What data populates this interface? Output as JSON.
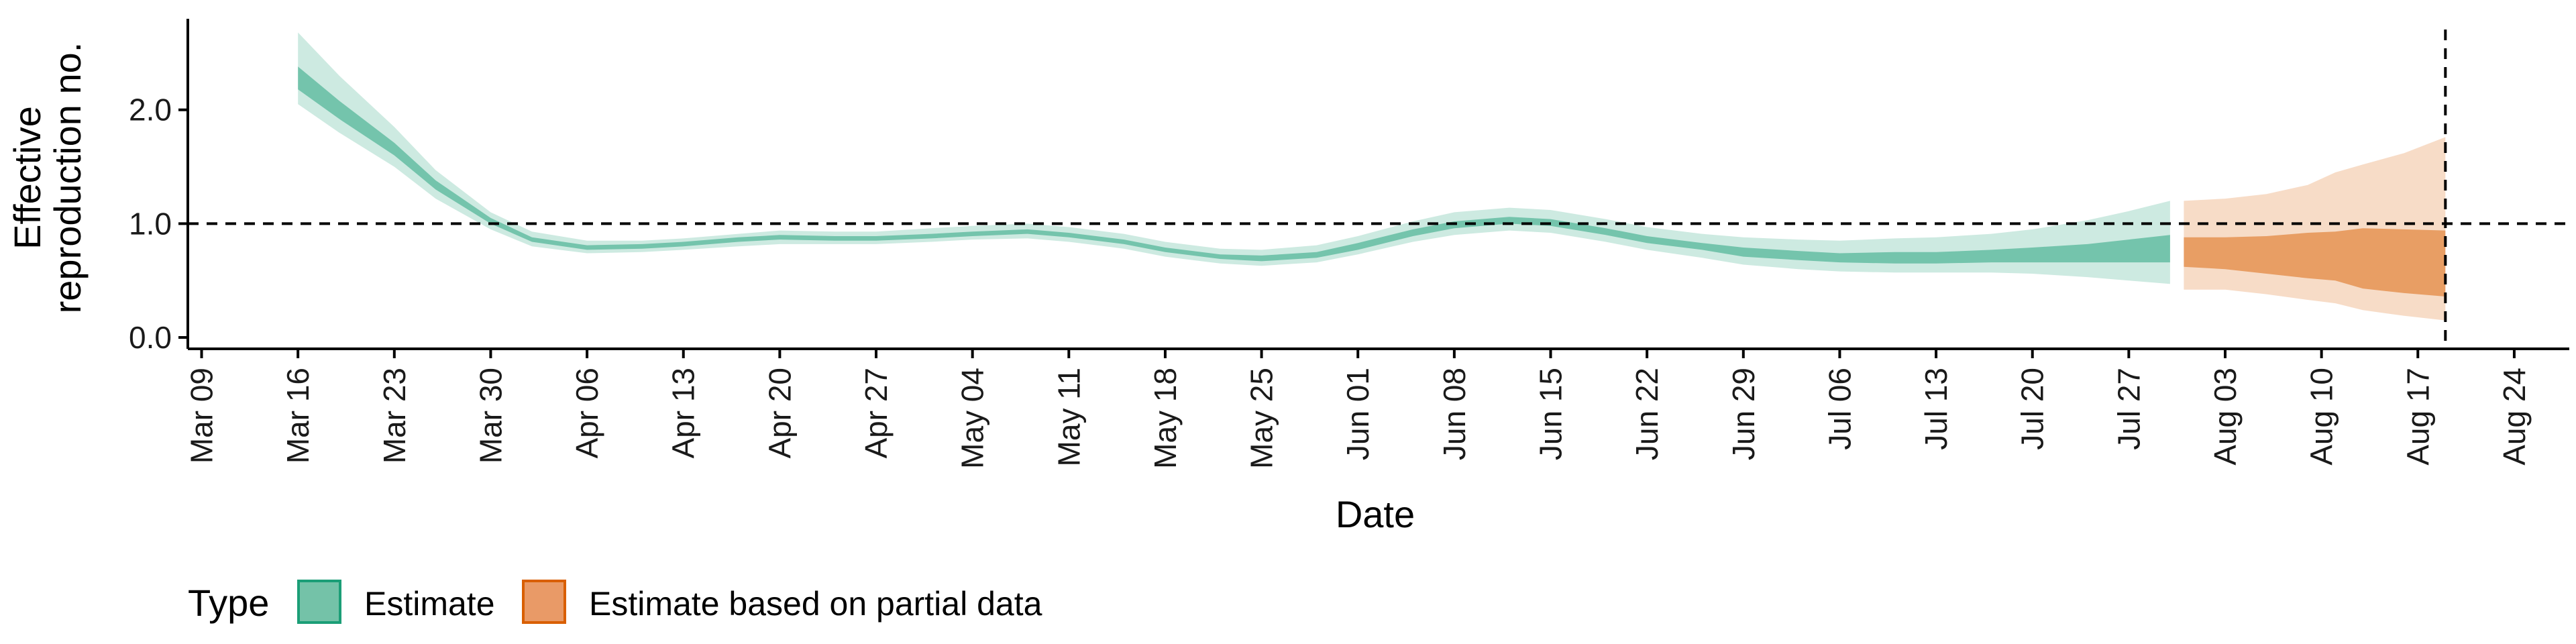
{
  "chart_data": {
    "type": "area",
    "title": "",
    "xlabel": "Date",
    "ylabel": "Effective reproduction no.",
    "ylabel_lines": [
      "Effective",
      "reproduction no."
    ],
    "x_ticks": [
      "Mar 09",
      "Mar 16",
      "Mar 23",
      "Mar 30",
      "Apr 06",
      "Apr 13",
      "Apr 20",
      "Apr 27",
      "May 04",
      "May 11",
      "May 18",
      "May 25",
      "Jun 01",
      "Jun 08",
      "Jun 15",
      "Jun 22",
      "Jun 29",
      "Jul 06",
      "Jul 13",
      "Jul 20",
      "Jul 27",
      "Aug 03",
      "Aug 10",
      "Aug 17",
      "Aug 24"
    ],
    "y_ticks": [
      "0.0",
      "1.0",
      "2.0"
    ],
    "xlim": [
      "2020-03-08",
      "2020-08-28"
    ],
    "ylim": [
      -0.1,
      2.8
    ],
    "reference_line_y": 1.0,
    "reference_line_x": "2020-08-19",
    "legend": {
      "title": "Type",
      "position": "bottom",
      "items": [
        {
          "label": "Estimate",
          "fill": "#74c2a8",
          "stroke": "#1b9e77"
        },
        {
          "label": "Estimate based on partial data",
          "fill": "#e99a67",
          "stroke": "#d95f02"
        }
      ]
    },
    "series": [
      {
        "name": "Estimate",
        "color": "#1b9e77",
        "points": [
          {
            "x": "2020-03-16",
            "lo90": 2.05,
            "lo50": 2.18,
            "median": 2.28,
            "hi50": 2.38,
            "hi90": 2.68
          },
          {
            "x": "2020-03-19",
            "lo90": 1.8,
            "lo50": 1.92,
            "median": 2.0,
            "hi50": 2.08,
            "hi90": 2.3
          },
          {
            "x": "2020-03-23",
            "lo90": 1.5,
            "lo50": 1.6,
            "median": 1.65,
            "hi50": 1.71,
            "hi90": 1.85
          },
          {
            "x": "2020-03-26",
            "lo90": 1.22,
            "lo50": 1.3,
            "median": 1.34,
            "hi50": 1.38,
            "hi90": 1.47
          },
          {
            "x": "2020-03-30",
            "lo90": 0.95,
            "lo50": 1.0,
            "median": 1.02,
            "hi50": 1.05,
            "hi90": 1.1
          },
          {
            "x": "2020-04-02",
            "lo90": 0.8,
            "lo50": 0.84,
            "median": 0.86,
            "hi50": 0.88,
            "hi90": 0.93
          },
          {
            "x": "2020-04-06",
            "lo90": 0.74,
            "lo50": 0.77,
            "median": 0.79,
            "hi50": 0.81,
            "hi90": 0.85
          },
          {
            "x": "2020-04-10",
            "lo90": 0.75,
            "lo50": 0.78,
            "median": 0.8,
            "hi50": 0.82,
            "hi90": 0.85
          },
          {
            "x": "2020-04-13",
            "lo90": 0.77,
            "lo50": 0.8,
            "median": 0.82,
            "hi50": 0.84,
            "hi90": 0.87
          },
          {
            "x": "2020-04-17",
            "lo90": 0.8,
            "lo50": 0.84,
            "median": 0.86,
            "hi50": 0.88,
            "hi90": 0.91
          },
          {
            "x": "2020-04-20",
            "lo90": 0.82,
            "lo50": 0.86,
            "median": 0.88,
            "hi50": 0.9,
            "hi90": 0.94
          },
          {
            "x": "2020-04-24",
            "lo90": 0.82,
            "lo50": 0.85,
            "median": 0.87,
            "hi50": 0.89,
            "hi90": 0.93
          },
          {
            "x": "2020-04-27",
            "lo90": 0.82,
            "lo50": 0.85,
            "median": 0.87,
            "hi50": 0.89,
            "hi90": 0.93
          },
          {
            "x": "2020-05-01",
            "lo90": 0.84,
            "lo50": 0.87,
            "median": 0.89,
            "hi50": 0.91,
            "hi90": 0.96
          },
          {
            "x": "2020-05-04",
            "lo90": 0.86,
            "lo50": 0.89,
            "median": 0.91,
            "hi50": 0.93,
            "hi90": 0.98
          },
          {
            "x": "2020-05-08",
            "lo90": 0.87,
            "lo50": 0.91,
            "median": 0.93,
            "hi50": 0.95,
            "hi90": 1.0
          },
          {
            "x": "2020-05-11",
            "lo90": 0.84,
            "lo50": 0.88,
            "median": 0.9,
            "hi50": 0.92,
            "hi90": 0.97
          },
          {
            "x": "2020-05-15",
            "lo90": 0.78,
            "lo50": 0.82,
            "median": 0.84,
            "hi50": 0.86,
            "hi90": 0.91
          },
          {
            "x": "2020-05-18",
            "lo90": 0.71,
            "lo50": 0.75,
            "median": 0.77,
            "hi50": 0.79,
            "hi90": 0.84
          },
          {
            "x": "2020-05-22",
            "lo90": 0.65,
            "lo50": 0.69,
            "median": 0.71,
            "hi50": 0.73,
            "hi90": 0.78
          },
          {
            "x": "2020-05-25",
            "lo90": 0.63,
            "lo50": 0.67,
            "median": 0.69,
            "hi50": 0.72,
            "hi90": 0.77
          },
          {
            "x": "2020-05-29",
            "lo90": 0.66,
            "lo50": 0.7,
            "median": 0.72,
            "hi50": 0.75,
            "hi90": 0.81
          },
          {
            "x": "2020-06-01",
            "lo90": 0.73,
            "lo50": 0.77,
            "median": 0.8,
            "hi50": 0.83,
            "hi90": 0.89
          },
          {
            "x": "2020-06-05",
            "lo90": 0.84,
            "lo50": 0.89,
            "median": 0.92,
            "hi50": 0.95,
            "hi90": 1.02
          },
          {
            "x": "2020-06-08",
            "lo90": 0.9,
            "lo50": 0.96,
            "median": 0.99,
            "hi50": 1.02,
            "hi90": 1.1
          },
          {
            "x": "2020-06-12",
            "lo90": 0.94,
            "lo50": 1.0,
            "median": 1.03,
            "hi50": 1.06,
            "hi90": 1.14
          },
          {
            "x": "2020-06-15",
            "lo90": 0.92,
            "lo50": 0.98,
            "median": 1.01,
            "hi50": 1.04,
            "hi90": 1.12
          },
          {
            "x": "2020-06-19",
            "lo90": 0.84,
            "lo50": 0.9,
            "median": 0.93,
            "hi50": 0.96,
            "hi90": 1.04
          },
          {
            "x": "2020-06-22",
            "lo90": 0.77,
            "lo50": 0.83,
            "median": 0.86,
            "hi50": 0.89,
            "hi90": 0.97
          },
          {
            "x": "2020-06-26",
            "lo90": 0.7,
            "lo50": 0.77,
            "median": 0.8,
            "hi50": 0.83,
            "hi90": 0.91
          },
          {
            "x": "2020-06-29",
            "lo90": 0.64,
            "lo50": 0.71,
            "median": 0.75,
            "hi50": 0.79,
            "hi90": 0.88
          },
          {
            "x": "2020-07-03",
            "lo90": 0.6,
            "lo50": 0.68,
            "median": 0.72,
            "hi50": 0.76,
            "hi90": 0.86
          },
          {
            "x": "2020-07-06",
            "lo90": 0.58,
            "lo50": 0.66,
            "median": 0.7,
            "hi50": 0.74,
            "hi90": 0.85
          },
          {
            "x": "2020-07-10",
            "lo90": 0.57,
            "lo50": 0.65,
            "median": 0.7,
            "hi50": 0.75,
            "hi90": 0.87
          },
          {
            "x": "2020-07-13",
            "lo90": 0.57,
            "lo50": 0.65,
            "median": 0.7,
            "hi50": 0.75,
            "hi90": 0.88
          },
          {
            "x": "2020-07-17",
            "lo90": 0.57,
            "lo50": 0.66,
            "median": 0.71,
            "hi50": 0.77,
            "hi90": 0.91
          },
          {
            "x": "2020-07-20",
            "lo90": 0.56,
            "lo50": 0.66,
            "median": 0.72,
            "hi50": 0.79,
            "hi90": 0.95
          },
          {
            "x": "2020-07-24",
            "lo90": 0.53,
            "lo50": 0.66,
            "median": 0.74,
            "hi50": 0.82,
            "hi90": 1.03
          },
          {
            "x": "2020-07-27",
            "lo90": 0.5,
            "lo50": 0.66,
            "median": 0.76,
            "hi50": 0.86,
            "hi90": 1.11
          },
          {
            "x": "2020-07-30",
            "lo90": 0.47,
            "lo50": 0.66,
            "median": 0.78,
            "hi50": 0.9,
            "hi90": 1.2
          }
        ]
      },
      {
        "name": "Estimate based on partial data",
        "color": "#d95f02",
        "points": [
          {
            "x": "2020-07-31",
            "lo90": 0.42,
            "lo50": 0.62,
            "median": 0.75,
            "hi50": 0.88,
            "hi90": 1.2
          },
          {
            "x": "2020-08-03",
            "lo90": 0.42,
            "lo50": 0.6,
            "median": 0.72,
            "hi50": 0.88,
            "hi90": 1.22
          },
          {
            "x": "2020-08-06",
            "lo90": 0.38,
            "lo50": 0.56,
            "median": 0.7,
            "hi50": 0.89,
            "hi90": 1.26
          },
          {
            "x": "2020-08-09",
            "lo90": 0.33,
            "lo50": 0.52,
            "median": 0.68,
            "hi50": 0.92,
            "hi90": 1.34
          },
          {
            "x": "2020-08-11",
            "lo90": 0.3,
            "lo50": 0.5,
            "median": 0.66,
            "hi50": 0.93,
            "hi90": 1.45
          },
          {
            "x": "2020-08-13",
            "lo90": 0.24,
            "lo50": 0.43,
            "median": 0.64,
            "hi50": 0.96,
            "hi90": 1.52
          },
          {
            "x": "2020-08-16",
            "lo90": 0.19,
            "lo50": 0.39,
            "median": 0.63,
            "hi50": 0.95,
            "hi90": 1.62
          },
          {
            "x": "2020-08-19",
            "lo90": 0.15,
            "lo50": 0.36,
            "median": 0.62,
            "hi50": 0.94,
            "hi90": 1.76
          }
        ]
      }
    ]
  }
}
